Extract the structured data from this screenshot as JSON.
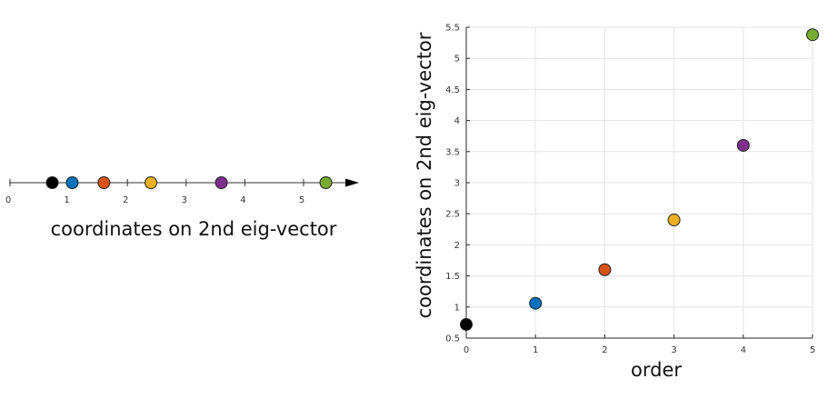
{
  "chart_data": [
    {
      "type": "scatter",
      "panel": "number-line",
      "xlabel": "coordinates on 2nd eig-vector",
      "xticks": [
        "0",
        "1",
        "2",
        "3",
        "4",
        "5"
      ],
      "xlim": [
        0,
        6
      ],
      "arrow": true,
      "points": [
        {
          "x": 0.72,
          "color": "#000000"
        },
        {
          "x": 1.06,
          "color": "#0072BD"
        },
        {
          "x": 1.6,
          "color": "#D95319"
        },
        {
          "x": 2.4,
          "color": "#EDB120"
        },
        {
          "x": 3.6,
          "color": "#7E2F8E"
        },
        {
          "x": 5.38,
          "color": "#77AC30"
        }
      ]
    },
    {
      "type": "scatter",
      "panel": "xy-plot",
      "xlabel": "order",
      "ylabel": "coordinates on 2nd eig-vector",
      "xlim": [
        0,
        5
      ],
      "ylim": [
        0.5,
        5.5
      ],
      "xticks": [
        "0",
        "1",
        "2",
        "3",
        "4",
        "5"
      ],
      "yticks": [
        "0.5",
        "1",
        "1.5",
        "2",
        "2.5",
        "3",
        "3.5",
        "4",
        "4.5",
        "5",
        "5.5"
      ],
      "grid": true,
      "x": [
        0,
        1,
        2,
        3,
        4,
        5
      ],
      "y": [
        0.72,
        1.06,
        1.6,
        2.4,
        3.6,
        5.38
      ],
      "colors": [
        "#000000",
        "#0072BD",
        "#D95319",
        "#EDB120",
        "#7E2F8E",
        "#77AC30"
      ]
    }
  ]
}
